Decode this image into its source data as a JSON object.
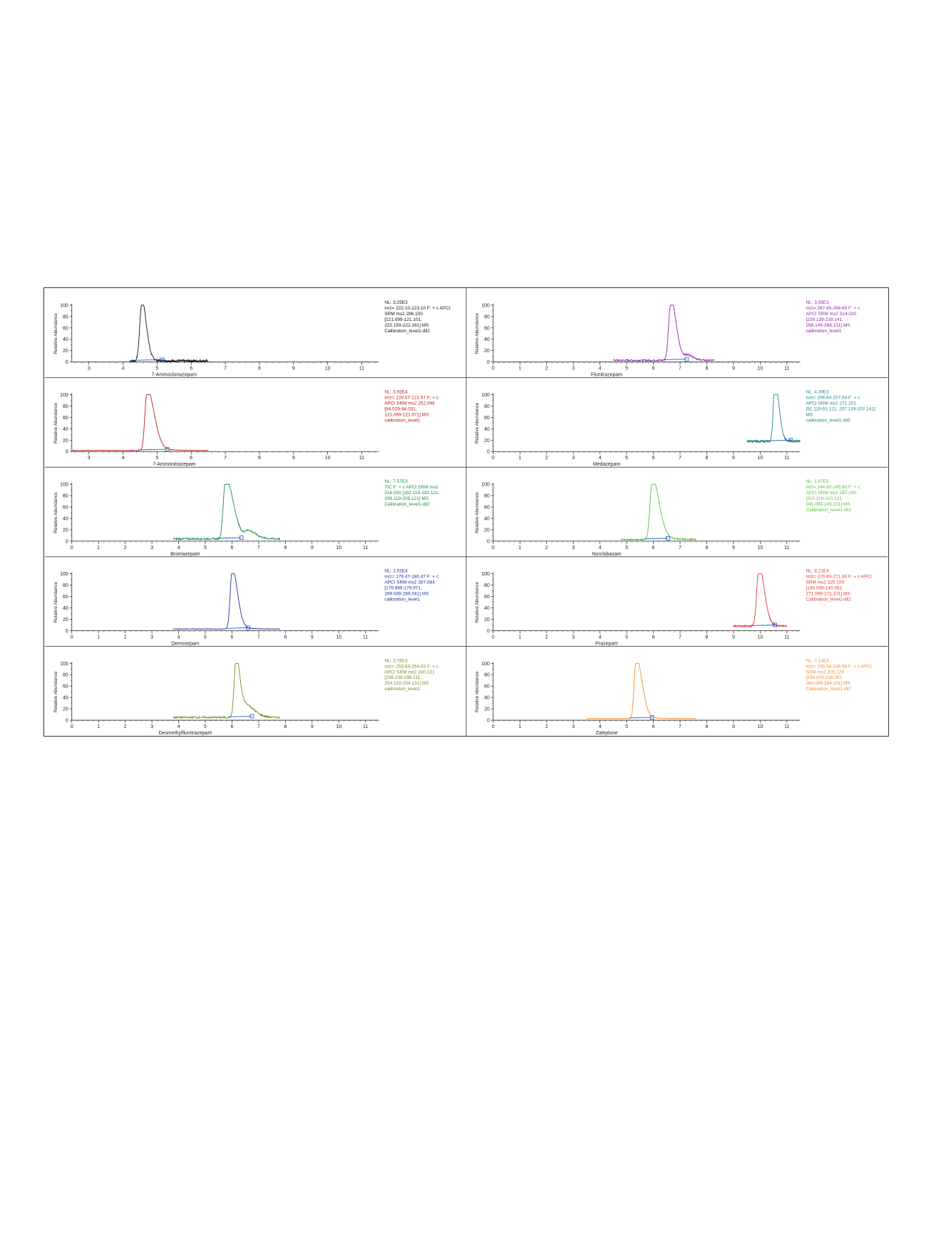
{
  "ylabel": "Relative Abundance",
  "chart_data": [
    {
      "type": "line",
      "name": "7-Aminoclonazepam",
      "color": "#111111",
      "xlabel": "7-Aminoclonazepam",
      "xlim": [
        2.5,
        11.5
      ],
      "xticks": [
        3,
        4,
        5,
        6,
        7,
        8,
        9,
        10,
        11
      ],
      "ylim": [
        0,
        100
      ],
      "yticks": [
        0,
        20,
        40,
        60,
        80,
        100
      ],
      "trace_range": [
        4.2,
        6.5
      ],
      "peaks": [
        {
          "x": 4.55,
          "y": 100,
          "w": 0.06,
          "tail": 0.12
        }
      ],
      "noise": 4,
      "baseline": 2,
      "info": [
        "NL: 3.25E3",
        "m/z= 222.10-223.10 F: + c APCI",
        "SRM ms2 286.100",
        "[121.099-121.101,",
        "222.159-222.161]  MS",
        "Calibration_level1-dil2"
      ],
      "info_color": "#111111"
    },
    {
      "type": "line",
      "name": "Flunitrazepam",
      "color": "#8e24aa",
      "xlabel": "Flunitrazepam",
      "xlim": [
        0,
        11.5
      ],
      "xticks": [
        0,
        1,
        2,
        3,
        4,
        5,
        6,
        7,
        8,
        9,
        10,
        11
      ],
      "ylim": [
        0,
        100
      ],
      "yticks": [
        0,
        20,
        40,
        60,
        80,
        100
      ],
      "trace_range": [
        4.5,
        8.3
      ],
      "peaks": [
        {
          "x": 6.65,
          "y": 100,
          "w": 0.08,
          "tail": 0.2
        },
        {
          "x": 7.3,
          "y": 8,
          "w": 0.15,
          "tail": 0.1
        }
      ],
      "noise": 3,
      "baseline": 3,
      "info": [
        "NL: 3.95E3",
        "m/z= 267.65-268.65 F: + c",
        "APCI SRM ms2 314.100",
        "[239.139-239.141,",
        "268.149-268.151]  MS",
        "calibration_level1"
      ],
      "info_color": "#8e24aa"
    },
    {
      "type": "line",
      "name": "7-Aminonitrazepam",
      "color": "#b71c1c",
      "xlabel": "7-Aminonitrazepam",
      "xlim": [
        2.5,
        11.5
      ],
      "xticks": [
        3,
        4,
        5,
        6,
        7,
        8,
        9,
        10,
        11
      ],
      "ylim": [
        0,
        100
      ],
      "yticks": [
        0,
        20,
        40,
        60,
        80,
        100
      ],
      "trace_range": [
        2.5,
        6.5
      ],
      "peaks": [
        {
          "x": 4.7,
          "y": 100,
          "w": 0.06,
          "tail": 0.25
        }
      ],
      "noise": 1,
      "baseline": 2,
      "info": [
        "NL: 3.92E4",
        "m/z= 120.57-121.57 F: + c",
        "APCI SRM ms2 252.098",
        "[94.029-94.031,",
        "121.069-121.071]  MS",
        "calibration_level1"
      ],
      "info_color": "#b71c1c"
    },
    {
      "type": "line",
      "name": "Medazepam",
      "color": "#26868a",
      "xlabel": "Medazepam",
      "xlim": [
        0,
        11.5
      ],
      "xticks": [
        0,
        1,
        2,
        3,
        4,
        5,
        6,
        7,
        8,
        9,
        10,
        11
      ],
      "ylim": [
        0,
        100
      ],
      "yticks": [
        0,
        20,
        40,
        60,
        80,
        100
      ],
      "trace_range": [
        9.5,
        11.5
      ],
      "peaks": [
        {
          "x": 10.55,
          "y": 100,
          "w": 0.06,
          "tail": 0.15
        }
      ],
      "noise": 4,
      "baseline": 18,
      "info": [
        "NL: 4.39E3",
        "m/z= 206.64-207.64 F: + c",
        "APCI SRM ms2 271.101",
        "[91.119-91.121, 207.139-207.141]",
        " MS",
        "calibration_level1-dil5"
      ],
      "info_color": "#26868a"
    },
    {
      "type": "line",
      "name": "Bromazepam",
      "color": "#1b8a4a",
      "xlabel": "Bromazepam",
      "xlim": [
        0,
        11.5
      ],
      "xticks": [
        0,
        1,
        2,
        3,
        4,
        5,
        6,
        7,
        8,
        9,
        10,
        11
      ],
      "ylim": [
        0,
        100
      ],
      "yticks": [
        0,
        20,
        40,
        60,
        80,
        100
      ],
      "trace_range": [
        3.8,
        7.8
      ],
      "peaks": [
        {
          "x": 5.75,
          "y": 100,
          "w": 0.08,
          "tail": 0.35
        },
        {
          "x": 6.6,
          "y": 12,
          "w": 0.12,
          "tail": 0.3
        }
      ],
      "noise": 3,
      "baseline": 4,
      "info": [
        "NL: 7.57E3",
        "TIC F: + c APCI SRM ms2",
        "316.000 [182.119-182.121,",
        "209.119-209.121]  MS",
        "Calibration_level1-dil2"
      ],
      "info_color": "#1b8a4a"
    },
    {
      "type": "line",
      "name": "Norclobazam",
      "color": "#5bbf3a",
      "xlabel": "Norclobazam",
      "xlim": [
        0,
        11.5
      ],
      "xticks": [
        0,
        1,
        2,
        3,
        4,
        5,
        6,
        7,
        8,
        9,
        10,
        11
      ],
      "ylim": [
        0,
        100
      ],
      "yticks": [
        0,
        20,
        40,
        60,
        80,
        100
      ],
      "trace_range": [
        4.8,
        7.6
      ],
      "peaks": [
        {
          "x": 5.95,
          "y": 100,
          "w": 0.08,
          "tail": 0.3
        }
      ],
      "noise": 2,
      "baseline": 3,
      "info": [
        "NL: 1.87E5",
        "m/z= 244.60-245.60 F: + c",
        "APCI SRM ms2 287.100",
        "[210.119-210.121,",
        "245.099-245.101]  MS",
        "Calibration_level1-dil2"
      ],
      "info_color": "#5bbf3a"
    },
    {
      "type": "line",
      "name": "Demoxepam",
      "color": "#1f2fa3",
      "xlabel": "Demoxepam",
      "xlim": [
        0,
        11.5
      ],
      "xticks": [
        0,
        1,
        2,
        3,
        4,
        5,
        6,
        7,
        8,
        9,
        10,
        11
      ],
      "ylim": [
        0,
        100
      ],
      "yticks": [
        0,
        20,
        40,
        60,
        80,
        100
      ],
      "trace_range": [
        3.8,
        7.8
      ],
      "peaks": [
        {
          "x": 6.0,
          "y": 100,
          "w": 0.07,
          "tail": 0.22
        }
      ],
      "noise": 1,
      "baseline": 3,
      "info": [
        "NL: 2.02E4",
        "m/z= 179.47-180.47 F: + c",
        "APCI SRM ms2 287.084",
        "[179.969-179.971,",
        "269.039-269.041]  MS",
        "calibration_level1"
      ],
      "info_color": "#1f2fa3"
    },
    {
      "type": "line",
      "name": "Prazepam",
      "color": "#e53935",
      "xlabel": "Prazepam",
      "xlim": [
        0,
        11.5
      ],
      "xticks": [
        0,
        1,
        2,
        3,
        4,
        5,
        6,
        7,
        8,
        9,
        10,
        11
      ],
      "ylim": [
        0,
        100
      ],
      "yticks": [
        0,
        20,
        40,
        60,
        80,
        100
      ],
      "trace_range": [
        9.0,
        11.0
      ],
      "peaks": [
        {
          "x": 9.95,
          "y": 100,
          "w": 0.08,
          "tail": 0.2
        }
      ],
      "noise": 2,
      "baseline": 8,
      "info": [
        "NL: 8.21E4",
        "m/z= 270.60-271.60 F: + c APCI",
        "SRM ms2 325.100",
        "[140.059-140.061,",
        "271.099-271.101]  MS",
        "Calibration_level1-dil2"
      ],
      "info_color": "#e53935"
    },
    {
      "type": "line",
      "name": "Desmethylflunitrazepam",
      "color": "#7a8a1e",
      "xlabel": "Desmethylflunitrazepam",
      "xlim": [
        0,
        11.5
      ],
      "xticks": [
        0,
        1,
        2,
        3,
        4,
        5,
        6,
        7,
        8,
        9,
        10,
        11
      ],
      "ylim": [
        0,
        100
      ],
      "yticks": [
        0,
        20,
        40,
        60,
        80,
        100
      ],
      "trace_range": [
        3.8,
        7.8
      ],
      "peaks": [
        {
          "x": 6.15,
          "y": 100,
          "w": 0.07,
          "tail": 0.12
        },
        {
          "x": 6.5,
          "y": 20,
          "w": 0.15,
          "tail": 0.3
        }
      ],
      "noise": 3,
      "baseline": 5,
      "info": [
        "NL: 3.76E3",
        "m/z= 253.63-254.63 F: + c",
        "APCI SRM ms2 330.101",
        "[198.109-198.111,",
        "254.129-254.131]  MS",
        "calibration_level1"
      ],
      "info_color": "#7a8a1e"
    },
    {
      "type": "line",
      "name": "Zaleplone",
      "color": "#f28c28",
      "xlabel": "Zaleplone",
      "xlim": [
        0,
        11.5
      ],
      "xticks": [
        0,
        1,
        2,
        3,
        4,
        5,
        6,
        7,
        8,
        9,
        10,
        11
      ],
      "ylim": [
        0,
        100
      ],
      "yticks": [
        0,
        20,
        40,
        60,
        80,
        100
      ],
      "trace_range": [
        3.5,
        7.6
      ],
      "peaks": [
        {
          "x": 5.35,
          "y": 100,
          "w": 0.07,
          "tail": 0.25
        }
      ],
      "noise": 1,
      "baseline": 3,
      "info": [
        "NL: 7.14E3",
        "m/z= 235.58-236.58 F: + c APCI",
        "SRM ms2 305.120",
        "[236.079-236.081,",
        "264.099-264.101]  MS",
        "Calibration_level1-dil2"
      ],
      "info_color": "#f28c28"
    }
  ]
}
